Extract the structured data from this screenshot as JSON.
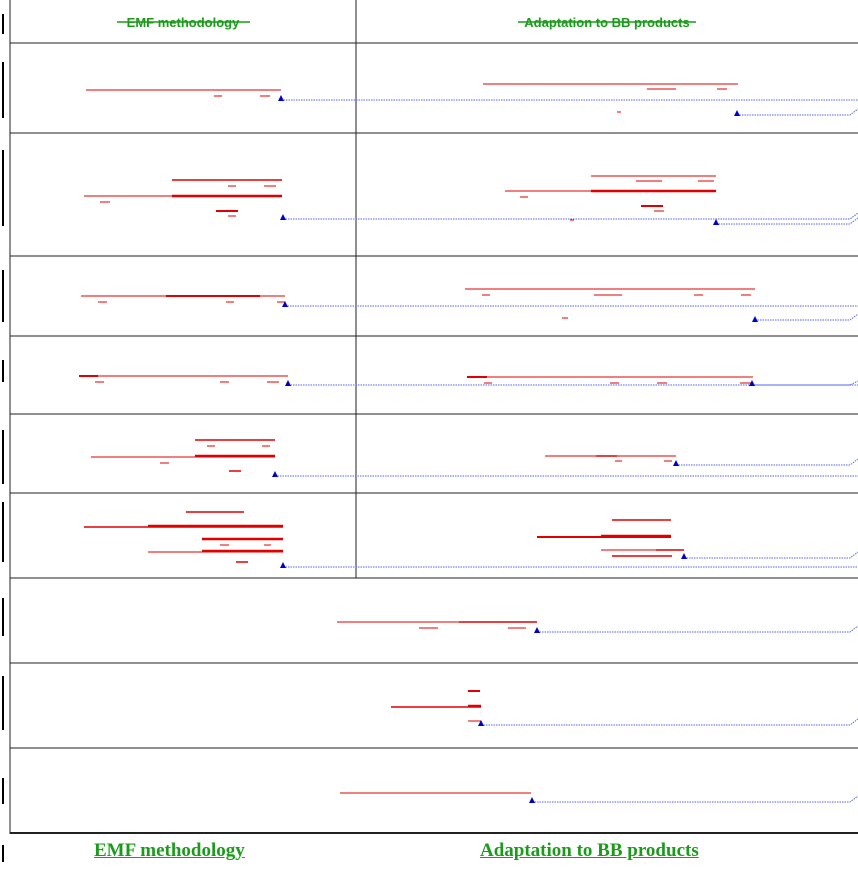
{
  "table": {
    "col1_header": "EMF methodology",
    "col2_header": "Adaptation to BB products"
  },
  "footer": {
    "col1_link": "EMF methodology",
    "col2_link": "Adaptation to BB products"
  },
  "colors": {
    "markup_red": "#e00000",
    "link_green": "#1a9c1a",
    "anchor_blue": "#0000cc",
    "connector_blue": "#5566ee",
    "border": "#222222"
  }
}
